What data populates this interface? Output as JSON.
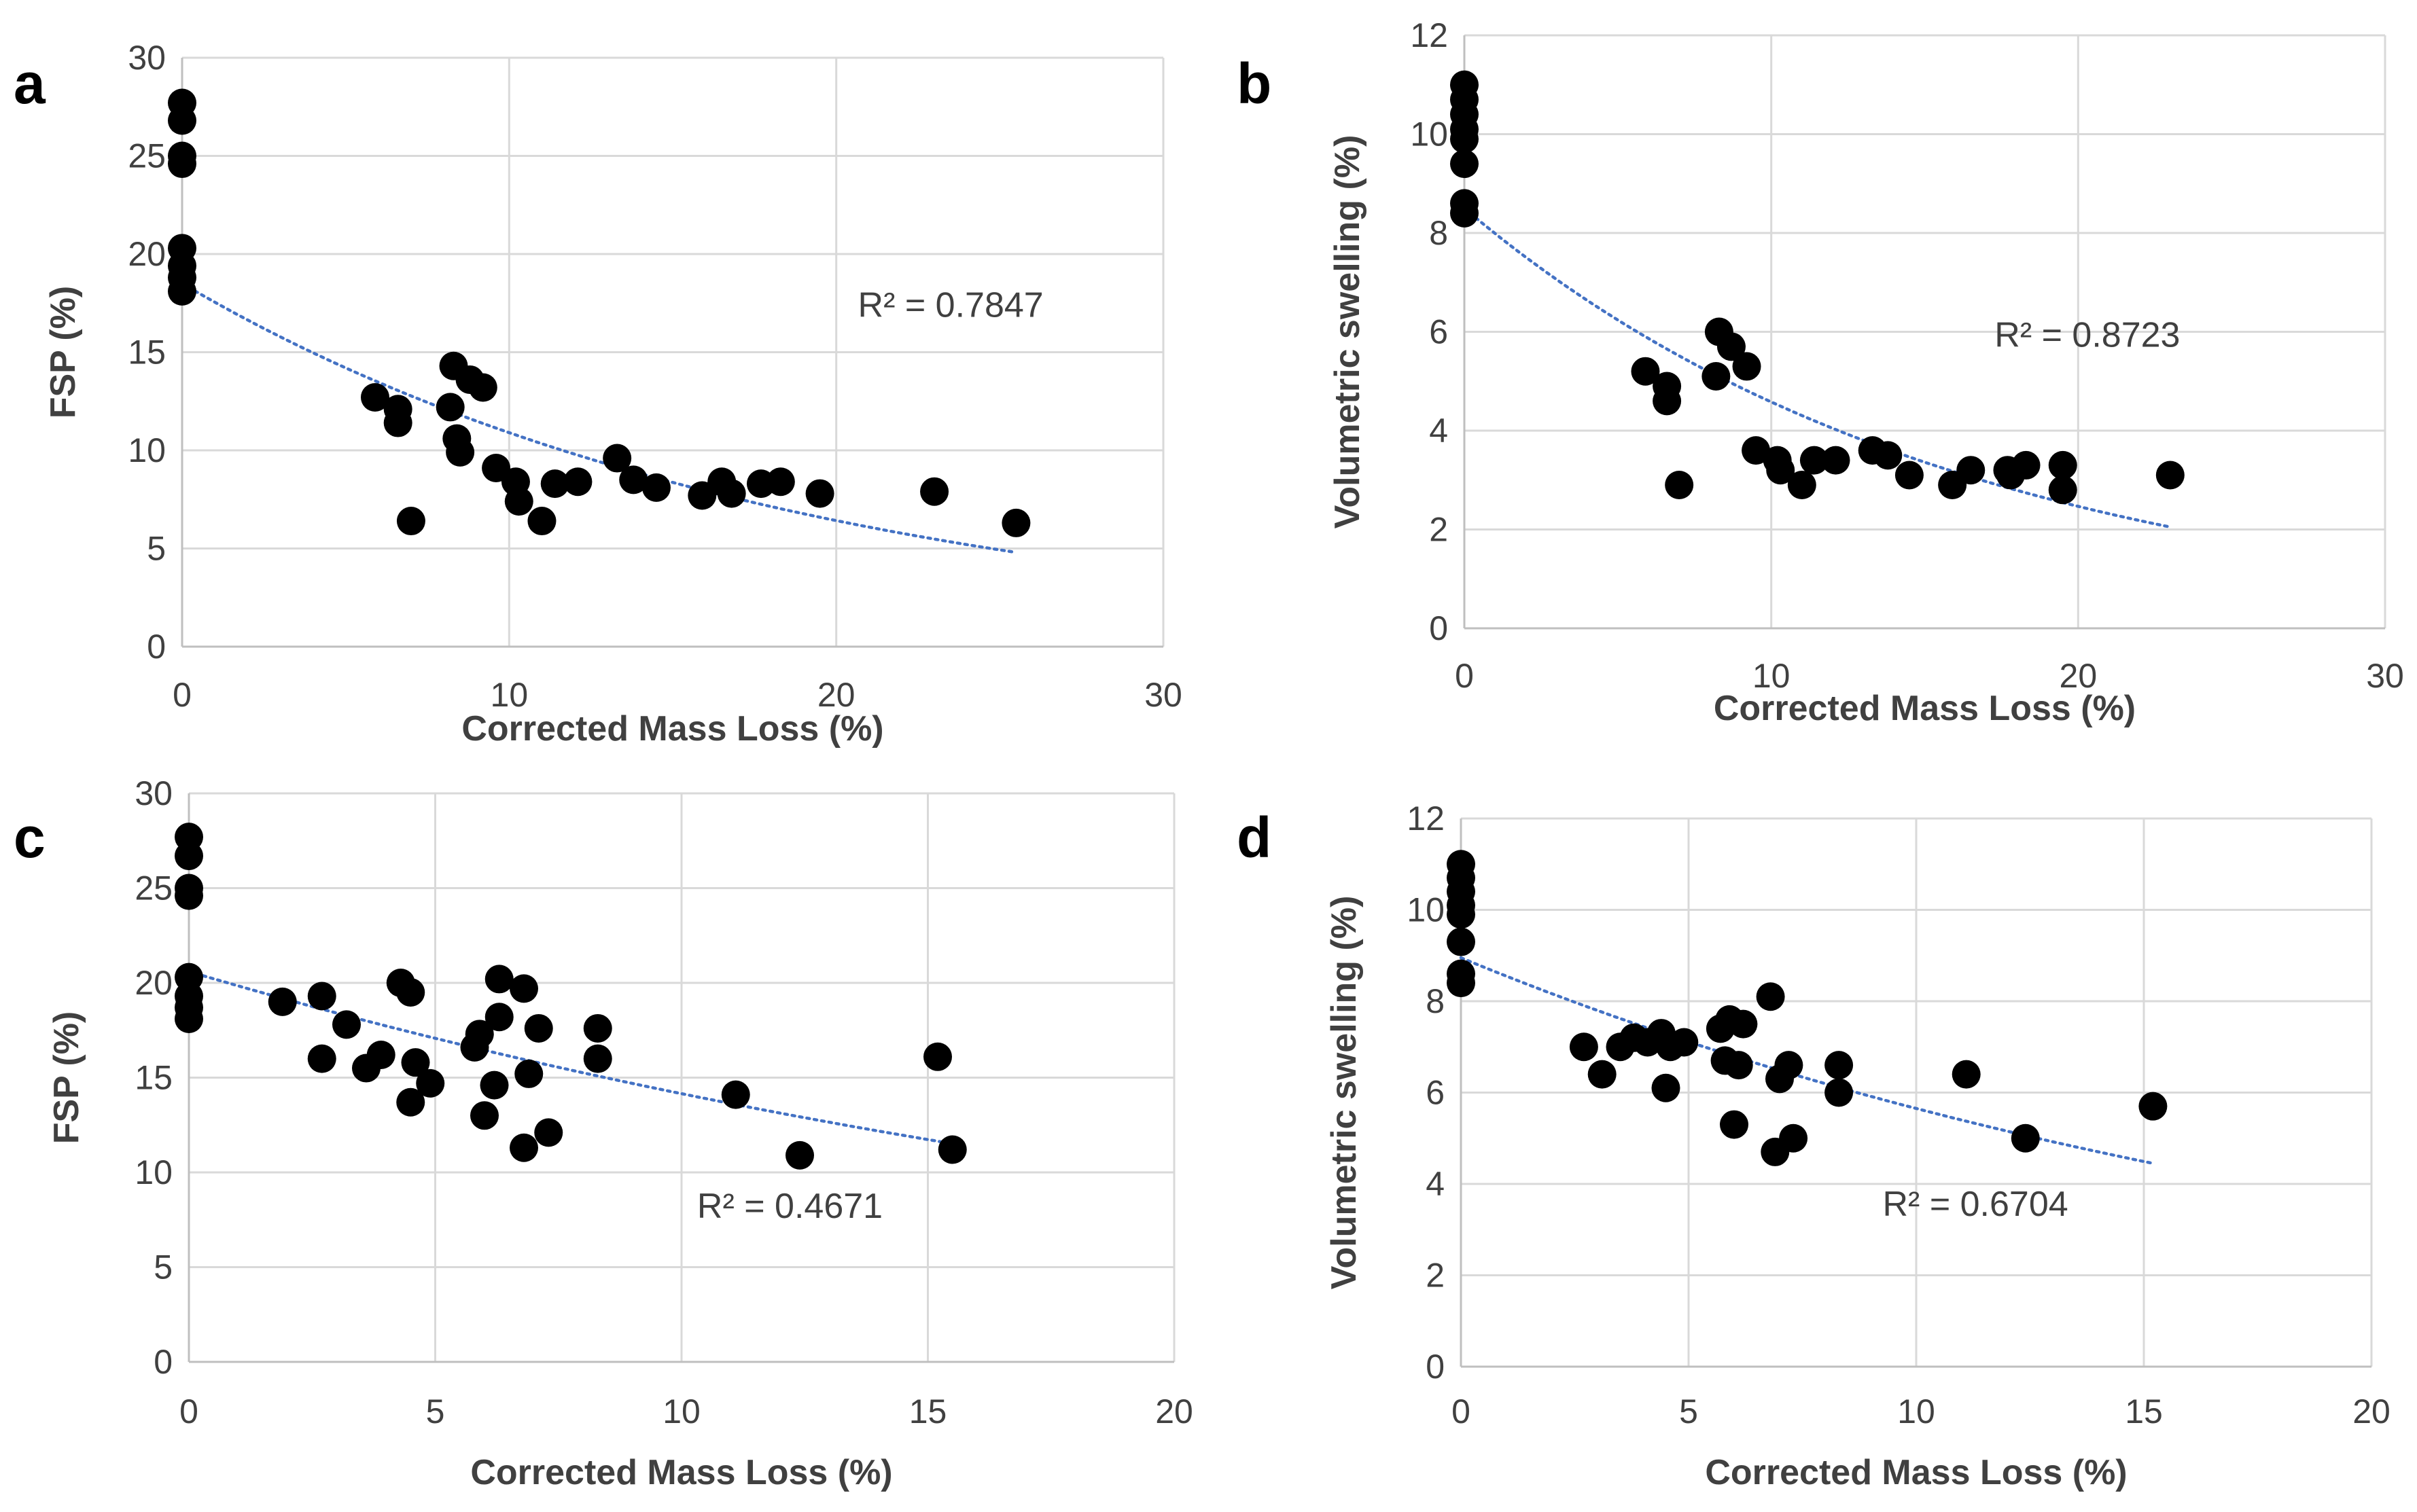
{
  "chart_data": [
    {
      "panel": "a",
      "type": "scatter",
      "xlabel": "Corrected Mass Loss (%)",
      "ylabel": "FSP (%)",
      "xlim": [
        0,
        30
      ],
      "ylim": [
        0,
        30
      ],
      "xticks": [
        0,
        10,
        20,
        30
      ],
      "yticks": [
        0,
        5,
        10,
        15,
        20,
        25,
        30
      ],
      "grid": true,
      "r2_text": "R² = 0.7847",
      "r2_anchor": [
        23.5,
        16.8
      ],
      "trendline": {
        "type": "exponential",
        "x_start": 0,
        "x_end": 25.5,
        "y_start": 18.5,
        "y_end": 4.8
      },
      "points": [
        [
          0,
          27.7
        ],
        [
          0,
          26.8
        ],
        [
          0,
          25.0
        ],
        [
          0,
          24.6
        ],
        [
          0,
          20.3
        ],
        [
          0,
          19.4
        ],
        [
          0,
          18.8
        ],
        [
          0,
          18.1
        ],
        [
          5.9,
          12.7
        ],
        [
          6.6,
          12.1
        ],
        [
          6.6,
          11.4
        ],
        [
          7.0,
          6.4
        ],
        [
          8.2,
          12.2
        ],
        [
          8.3,
          14.3
        ],
        [
          8.4,
          10.6
        ],
        [
          8.5,
          9.9
        ],
        [
          8.8,
          13.6
        ],
        [
          9.2,
          13.2
        ],
        [
          9.6,
          9.1
        ],
        [
          10.2,
          8.4
        ],
        [
          10.3,
          7.4
        ],
        [
          11.0,
          6.4
        ],
        [
          11.4,
          8.3
        ],
        [
          12.1,
          8.4
        ],
        [
          13.3,
          9.6
        ],
        [
          13.8,
          8.5
        ],
        [
          14.5,
          8.1
        ],
        [
          15.9,
          7.7
        ],
        [
          16.5,
          8.4
        ],
        [
          16.8,
          7.8
        ],
        [
          17.7,
          8.3
        ],
        [
          18.3,
          8.4
        ],
        [
          19.5,
          7.8
        ],
        [
          23.0,
          7.9
        ],
        [
          25.5,
          6.3
        ]
      ]
    },
    {
      "panel": "b",
      "type": "scatter",
      "xlabel": "Corrected Mass Loss (%)",
      "ylabel": "Volumetric swelling (%)",
      "xlim": [
        0,
        30
      ],
      "ylim": [
        0,
        12
      ],
      "xticks": [
        0,
        10,
        20,
        30
      ],
      "yticks": [
        0,
        2,
        4,
        6,
        8,
        10,
        12
      ],
      "grid": true,
      "r2_text": "R² = 0.8723",
      "r2_anchor": [
        20.3,
        5.7
      ],
      "trendline": {
        "type": "exponential",
        "x_start": 0,
        "x_end": 23,
        "y_start": 8.5,
        "y_end": 2.05
      },
      "points": [
        [
          0,
          11.0
        ],
        [
          0,
          10.7
        ],
        [
          0,
          10.4
        ],
        [
          0,
          10.1
        ],
        [
          0,
          9.9
        ],
        [
          0,
          9.4
        ],
        [
          0,
          8.6
        ],
        [
          0,
          8.4
        ],
        [
          5.9,
          5.2
        ],
        [
          6.6,
          4.9
        ],
        [
          6.6,
          4.6
        ],
        [
          7.0,
          2.9
        ],
        [
          8.2,
          5.1
        ],
        [
          8.3,
          6.0
        ],
        [
          8.7,
          5.7
        ],
        [
          9.2,
          5.3
        ],
        [
          9.5,
          3.6
        ],
        [
          10.2,
          3.4
        ],
        [
          10.3,
          3.2
        ],
        [
          11.0,
          2.9
        ],
        [
          11.4,
          3.4
        ],
        [
          12.1,
          3.4
        ],
        [
          13.3,
          3.6
        ],
        [
          13.8,
          3.5
        ],
        [
          14.5,
          3.1
        ],
        [
          15.9,
          2.9
        ],
        [
          16.5,
          3.2
        ],
        [
          17.7,
          3.2
        ],
        [
          17.8,
          3.1
        ],
        [
          18.3,
          3.3
        ],
        [
          19.5,
          3.3
        ],
        [
          19.5,
          2.8
        ],
        [
          23.0,
          3.1
        ]
      ]
    },
    {
      "panel": "c",
      "type": "scatter",
      "xlabel": "Corrected Mass Loss (%)",
      "ylabel": "FSP (%)",
      "xlim": [
        0,
        20
      ],
      "ylim": [
        0,
        30
      ],
      "xticks": [
        0,
        5,
        10,
        15,
        20
      ],
      "yticks": [
        0,
        5,
        10,
        15,
        20,
        25,
        30
      ],
      "grid": true,
      "r2_text": "R² = 0.4671",
      "r2_anchor": [
        12.2,
        7.6
      ],
      "trendline": {
        "type": "exponential",
        "x_start": 0,
        "x_end": 15.3,
        "y_start": 20.6,
        "y_end": 11.6
      },
      "points": [
        [
          0,
          27.7
        ],
        [
          0,
          26.7
        ],
        [
          0,
          25.0
        ],
        [
          0,
          24.6
        ],
        [
          0,
          20.3
        ],
        [
          0,
          19.3
        ],
        [
          0,
          18.7
        ],
        [
          0,
          18.1
        ],
        [
          1.9,
          19.0
        ],
        [
          2.7,
          19.3
        ],
        [
          2.7,
          16.0
        ],
        [
          3.2,
          17.8
        ],
        [
          3.6,
          15.5
        ],
        [
          3.9,
          16.2
        ],
        [
          4.3,
          20.0
        ],
        [
          4.5,
          19.5
        ],
        [
          4.5,
          13.7
        ],
        [
          4.6,
          15.8
        ],
        [
          4.9,
          14.7
        ],
        [
          5.8,
          16.6
        ],
        [
          5.9,
          17.3
        ],
        [
          6.0,
          13.0
        ],
        [
          6.2,
          14.6
        ],
        [
          6.3,
          18.2
        ],
        [
          6.3,
          20.2
        ],
        [
          6.8,
          19.7
        ],
        [
          6.8,
          11.3
        ],
        [
          6.9,
          15.2
        ],
        [
          7.1,
          17.6
        ],
        [
          7.3,
          12.1
        ],
        [
          8.3,
          17.6
        ],
        [
          8.3,
          16.0
        ],
        [
          11.1,
          14.1
        ],
        [
          12.4,
          10.9
        ],
        [
          15.2,
          16.1
        ],
        [
          15.5,
          11.2
        ]
      ]
    },
    {
      "panel": "d",
      "type": "scatter",
      "xlabel": "Corrected Mass Loss (%)",
      "ylabel": "Volumetric swelling (%)",
      "xlim": [
        0,
        20
      ],
      "ylim": [
        0,
        12
      ],
      "xticks": [
        0,
        5,
        10,
        15,
        20
      ],
      "yticks": [
        0,
        2,
        4,
        6,
        8,
        10,
        12
      ],
      "grid": true,
      "r2_text": "R² = 0.6704",
      "r2_anchor": [
        11.3,
        3.3
      ],
      "trendline": {
        "type": "exponential",
        "x_start": 0,
        "x_end": 15.2,
        "y_start": 8.95,
        "y_end": 4.45
      },
      "points": [
        [
          0,
          11.0
        ],
        [
          0,
          10.7
        ],
        [
          0,
          10.4
        ],
        [
          0,
          10.1
        ],
        [
          0,
          9.9
        ],
        [
          0,
          9.3
        ],
        [
          0,
          8.6
        ],
        [
          0,
          8.4
        ],
        [
          2.7,
          7.0
        ],
        [
          3.1,
          6.4
        ],
        [
          3.5,
          7.0
        ],
        [
          3.8,
          7.2
        ],
        [
          4.1,
          7.1
        ],
        [
          4.4,
          7.3
        ],
        [
          4.5,
          6.1
        ],
        [
          4.6,
          7.0
        ],
        [
          4.9,
          7.1
        ],
        [
          5.7,
          7.4
        ],
        [
          5.8,
          6.7
        ],
        [
          5.9,
          7.6
        ],
        [
          6.0,
          5.3
        ],
        [
          6.1,
          6.6
        ],
        [
          6.2,
          7.5
        ],
        [
          6.8,
          8.1
        ],
        [
          6.9,
          4.7
        ],
        [
          7.0,
          6.3
        ],
        [
          7.2,
          6.6
        ],
        [
          7.3,
          5.0
        ],
        [
          8.3,
          6.6
        ],
        [
          8.3,
          6.0
        ],
        [
          11.1,
          6.4
        ],
        [
          12.4,
          5.0
        ],
        [
          15.2,
          5.7
        ]
      ]
    }
  ]
}
